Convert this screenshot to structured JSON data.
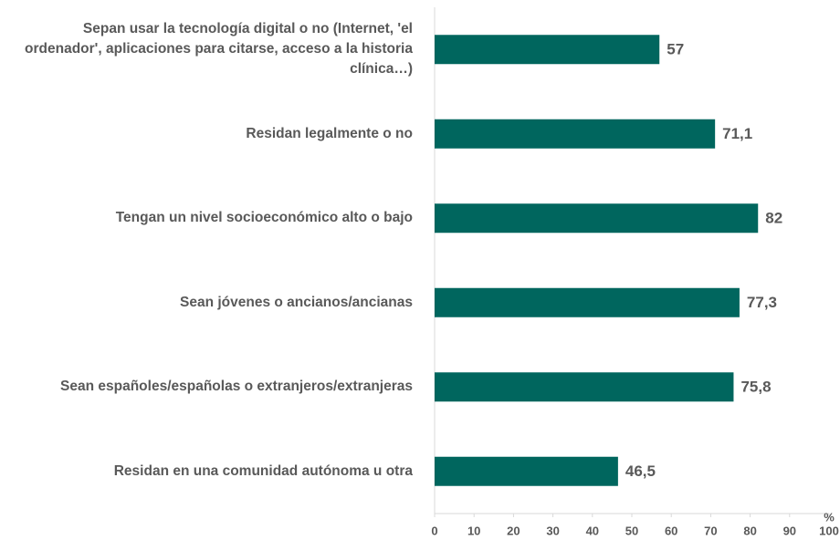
{
  "chart_data": {
    "type": "barh",
    "categories": [
      "Sepan usar la tecnología digital o no (Internet, 'el ordenador', aplicaciones para citarse, acceso a la historia clínica…)",
      "Residan legalmente o no",
      "Tengan un nivel socioeconómico alto o bajo",
      "Sean jóvenes o ancianos/ancianas",
      "Sean españoles/españolas o extranjeros/extranjeras",
      "Residan en una comunidad autónoma u otra"
    ],
    "values": [
      57,
      71.1,
      82,
      77.3,
      75.8,
      46.5
    ],
    "value_labels": [
      "57",
      "71,1",
      "82",
      "77,3",
      "75,8",
      "46,5"
    ],
    "color": "#00665e",
    "xlabel": "%",
    "xlim": [
      0,
      100
    ],
    "xticks": [
      0,
      10,
      20,
      30,
      40,
      50,
      60,
      70,
      80,
      90,
      100
    ]
  }
}
